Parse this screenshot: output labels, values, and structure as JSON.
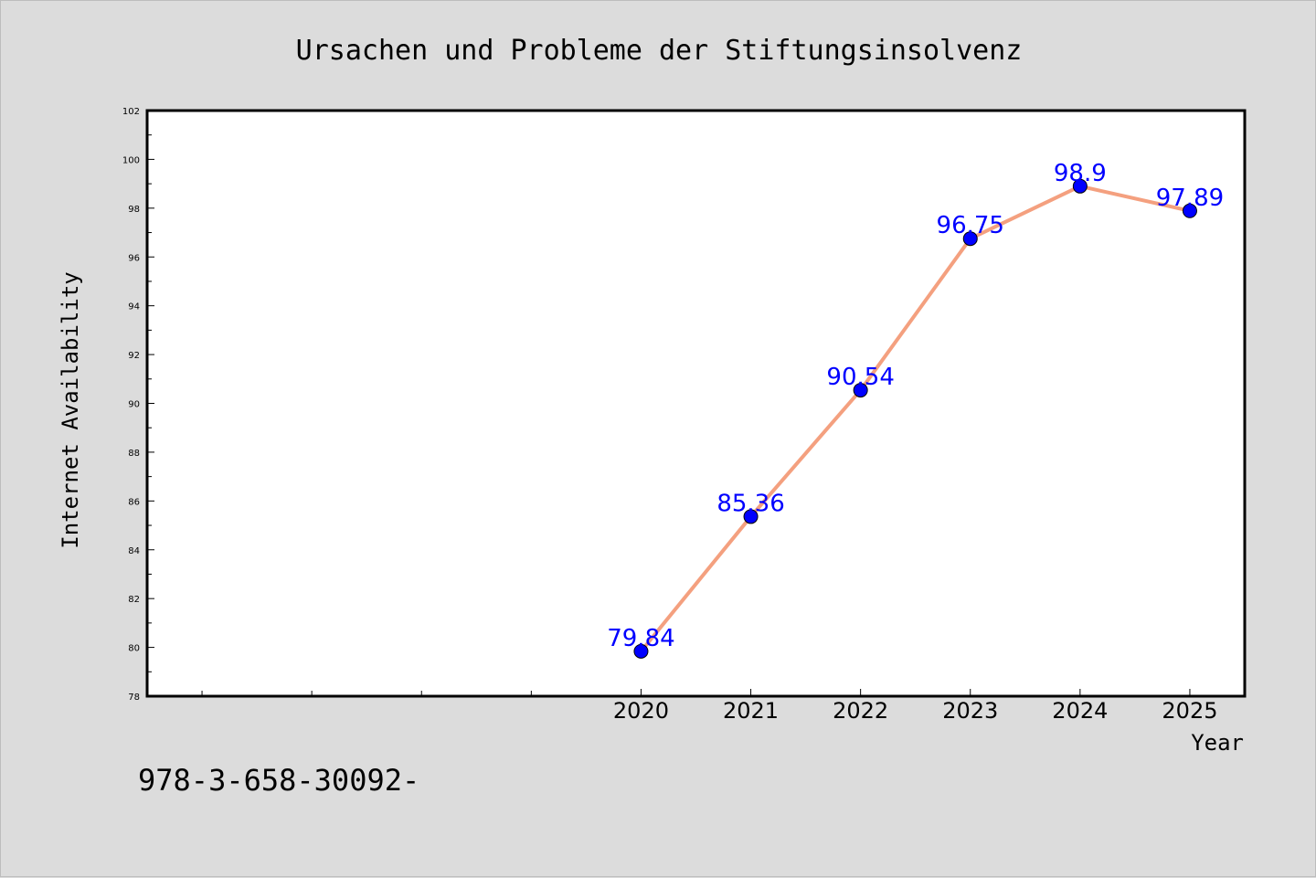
{
  "chart_data": {
    "type": "line",
    "title": "Ursachen und Probleme der Stiftungsinsolvenz",
    "xlabel": "Year",
    "ylabel": "Internet Availability",
    "x": [
      "2020",
      "2021",
      "2022",
      "2023",
      "2024",
      "2025"
    ],
    "series": [
      {
        "values": [
          79.84,
          85.36,
          90.54,
          96.75,
          98.9,
          97.89
        ]
      }
    ],
    "data_labels": [
      "79.84",
      "85.36",
      "90.54",
      "96.75",
      "98.9",
      "97.89"
    ],
    "ylim": [
      78,
      102
    ],
    "yticks": [
      78,
      80,
      82,
      84,
      86,
      88,
      90,
      92,
      94,
      96,
      98,
      100,
      102
    ],
    "xlim": [
      2015.5,
      2025.5
    ],
    "minor_xticks": [
      2016,
      2017,
      2018,
      2019
    ],
    "grid": false,
    "colors": {
      "line": "#f4a07f",
      "marker": "#0000ff",
      "data_label": "#0000ff",
      "plot_bg": "#ffffff",
      "figure_bg": "#dcdcdc"
    }
  },
  "footnote": "978-3-658-30092-"
}
